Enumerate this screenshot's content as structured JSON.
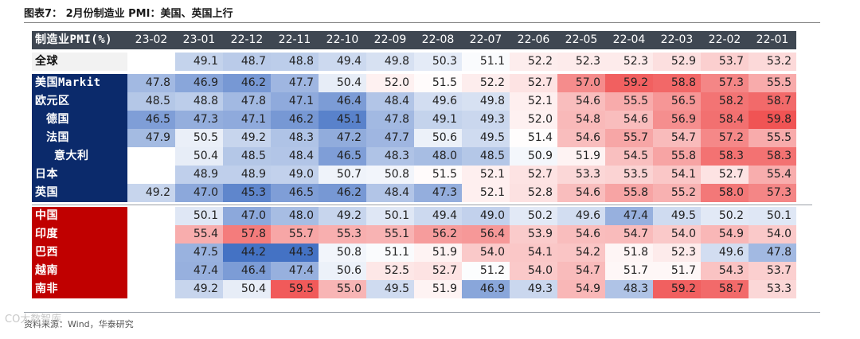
{
  "title": "图表7： 2月份制造业 PMI：美国、英国上行",
  "source": "资料来源：Wind，华泰研究",
  "watermark": "CO大数智库",
  "header": {
    "label": "制造业PMI(%)",
    "columns": [
      "23-02",
      "23-01",
      "22-12",
      "22-11",
      "22-10",
      "22-09",
      "22-08",
      "22-07",
      "22-06",
      "22-05",
      "22-04",
      "22-03",
      "22-02",
      "22-01"
    ]
  },
  "groups": [
    {
      "rows": [
        {
          "label": "全球",
          "style": "grey",
          "values": [
            "",
            "49.1",
            "48.7",
            "48.8",
            "49.4",
            "49.8",
            "50.3",
            "51.1",
            "52.2",
            "52.3",
            "52.3",
            "52.9",
            "53.7",
            "53.2"
          ]
        }
      ]
    },
    {
      "rows": [
        {
          "label": "美国Markit",
          "style": "navy",
          "indent": 0,
          "values": [
            "47.8",
            "46.9",
            "46.2",
            "47.7",
            "50.4",
            "52.0",
            "51.5",
            "52.2",
            "52.7",
            "57.0",
            "59.2",
            "58.8",
            "57.3",
            "55.5"
          ]
        },
        {
          "label": "欧元区",
          "style": "navy",
          "indent": 0,
          "values": [
            "48.5",
            "48.8",
            "47.8",
            "47.1",
            "46.4",
            "48.4",
            "49.6",
            "49.8",
            "52.1",
            "54.6",
            "55.5",
            "56.5",
            "58.2",
            "58.7"
          ]
        },
        {
          "label": "德国",
          "style": "navy",
          "indent": 1,
          "values": [
            "46.5",
            "47.3",
            "47.1",
            "46.2",
            "45.1",
            "47.8",
            "49.1",
            "49.3",
            "52.0",
            "54.8",
            "54.6",
            "56.9",
            "58.4",
            "59.8"
          ]
        },
        {
          "label": "法国",
          "style": "navy",
          "indent": 1,
          "values": [
            "47.9",
            "50.5",
            "49.2",
            "48.3",
            "47.2",
            "47.7",
            "50.6",
            "49.5",
            "51.4",
            "54.6",
            "55.7",
            "54.7",
            "57.2",
            "55.5"
          ]
        },
        {
          "label": "意大利",
          "style": "navy",
          "indent": 2,
          "values": [
            "",
            "50.4",
            "48.5",
            "48.4",
            "46.5",
            "48.3",
            "48.0",
            "48.5",
            "50.9",
            "51.9",
            "54.5",
            "55.8",
            "58.3",
            "58.3"
          ]
        },
        {
          "label": "日本",
          "style": "navy",
          "indent": 0,
          "values": [
            "",
            "48.9",
            "48.9",
            "49.0",
            "50.7",
            "50.8",
            "51.5",
            "52.1",
            "52.7",
            "53.3",
            "53.5",
            "54.1",
            "52.7",
            "55.4"
          ]
        },
        {
          "label": "英国",
          "style": "navy",
          "indent": 0,
          "values": [
            "49.2",
            "47.0",
            "45.3",
            "46.5",
            "46.2",
            "48.4",
            "47.3",
            "52.1",
            "52.8",
            "54.6",
            "55.8",
            "55.2",
            "58.0",
            "57.3"
          ]
        }
      ]
    },
    {
      "rows": [
        {
          "label": "中国",
          "style": "red",
          "indent": 0,
          "values": [
            "",
            "50.1",
            "47.0",
            "48.0",
            "49.2",
            "50.1",
            "49.4",
            "49.0",
            "50.2",
            "49.6",
            "47.4",
            "49.5",
            "50.2",
            "50.1"
          ]
        },
        {
          "label": "印度",
          "style": "red",
          "indent": 0,
          "values": [
            "",
            "55.4",
            "57.8",
            "55.7",
            "55.3",
            "55.1",
            "56.2",
            "56.4",
            "53.9",
            "54.6",
            "54.7",
            "54.0",
            "54.9",
            "54.0"
          ]
        },
        {
          "label": "巴西",
          "style": "red",
          "indent": 0,
          "values": [
            "",
            "47.5",
            "44.2",
            "44.3",
            "50.8",
            "51.1",
            "51.9",
            "54.0",
            "54.1",
            "54.2",
            "51.8",
            "52.3",
            "49.6",
            "47.8"
          ]
        },
        {
          "label": "越南",
          "style": "red",
          "indent": 0,
          "values": [
            "",
            "47.4",
            "46.4",
            "47.4",
            "50.6",
            "52.5",
            "52.7",
            "51.2",
            "54.0",
            "54.7",
            "51.7",
            "51.7",
            "54.3",
            "53.7"
          ]
        },
        {
          "label": "南非",
          "style": "red",
          "indent": 0,
          "values": [
            "",
            "49.2",
            "50.4",
            "59.5",
            "55.0",
            "49.5",
            "51.9",
            "46.9",
            "49.3",
            "54.9",
            "48.3",
            "59.2",
            "58.7",
            "53.3"
          ]
        }
      ]
    }
  ]
}
